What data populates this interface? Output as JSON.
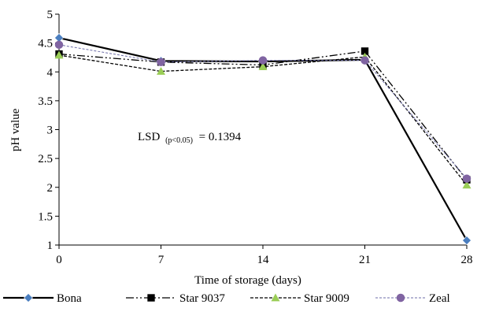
{
  "chart_data": {
    "type": "line",
    "xlabel": "Time of storage (days)",
    "ylabel": "pH value",
    "x": [
      0,
      7,
      14,
      21,
      28
    ],
    "xlim": [
      0,
      28
    ],
    "ylim": [
      1,
      5
    ],
    "yticks": [
      1,
      1.5,
      2,
      2.5,
      3,
      3.5,
      4,
      4.5,
      5
    ],
    "ytick_labels": [
      "1",
      "1.5",
      "2",
      "2.5",
      "3",
      "3.5",
      "4",
      "4.5",
      "5"
    ],
    "xtick_labels": [
      "0",
      "7",
      "14",
      "21",
      "28"
    ],
    "grid": false,
    "legend_position": "bottom",
    "annotation": {
      "text_main": "LSD",
      "text_sub": "(p<0.05)",
      "text_value": "= 0.1394"
    },
    "series": [
      {
        "name": "Bona",
        "values": [
          4.59,
          4.19,
          4.18,
          4.21,
          1.08
        ],
        "color": "#4a7ebf",
        "marker": "diamond",
        "line_color": "#000000",
        "dash": "",
        "stroke_width": 2.2
      },
      {
        "name": "Star 9037",
        "values": [
          4.31,
          4.17,
          4.12,
          4.36,
          2.13
        ],
        "color": "#000000",
        "marker": "square",
        "line_color": "#000000",
        "dash": "10,3,2,3,2,3",
        "stroke_width": 1.3
      },
      {
        "name": "Star 9009",
        "values": [
          4.29,
          4.01,
          4.09,
          4.26,
          2.04
        ],
        "color": "#9acd56",
        "marker": "triangle",
        "line_color": "#000000",
        "dash": "4,2",
        "stroke_width": 1.3
      },
      {
        "name": "Zeal",
        "values": [
          4.47,
          4.17,
          4.2,
          4.2,
          2.15
        ],
        "color": "#8064a2",
        "marker": "circle",
        "line_color": "#6e6ea8",
        "dash": "3,2",
        "stroke_width": 1
      }
    ]
  }
}
